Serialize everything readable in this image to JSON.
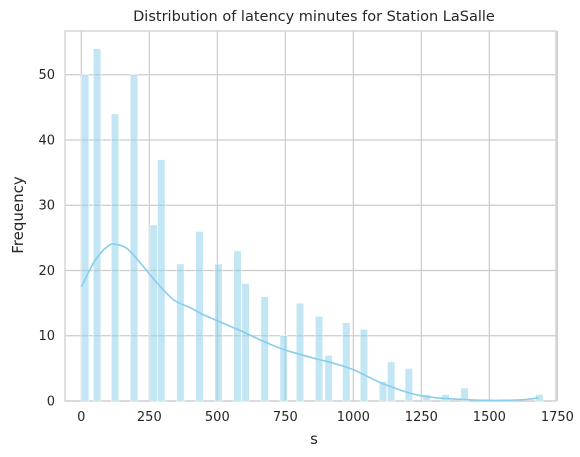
{
  "chart_data": {
    "type": "bar",
    "title": "Distribution of latency minutes for Station LaSalle",
    "xlabel": "s",
    "ylabel": "Frequency",
    "xlim": [
      -60,
      1745
    ],
    "ylim": [
      0,
      56.7
    ],
    "xticks": [
      0,
      250,
      500,
      750,
      1000,
      1250,
      1500,
      1750
    ],
    "yticks": [
      0,
      10,
      20,
      30,
      40,
      50
    ],
    "grid": true,
    "bin_width": 28,
    "bar_color": "#87ceeb",
    "bins": [
      {
        "x": 0,
        "count": 50
      },
      {
        "x": 44,
        "count": 54
      },
      {
        "x": 110,
        "count": 44
      },
      {
        "x": 180,
        "count": 50
      },
      {
        "x": 252,
        "count": 27
      },
      {
        "x": 280,
        "count": 37
      },
      {
        "x": 350,
        "count": 21
      },
      {
        "x": 420,
        "count": 26
      },
      {
        "x": 490,
        "count": 21
      },
      {
        "x": 560,
        "count": 23
      },
      {
        "x": 590,
        "count": 18
      },
      {
        "x": 660,
        "count": 16
      },
      {
        "x": 730,
        "count": 10
      },
      {
        "x": 790,
        "count": 15
      },
      {
        "x": 860,
        "count": 13
      },
      {
        "x": 895,
        "count": 7
      },
      {
        "x": 960,
        "count": 12
      },
      {
        "x": 1025,
        "count": 11
      },
      {
        "x": 1095,
        "count": 3
      },
      {
        "x": 1125,
        "count": 6
      },
      {
        "x": 1190,
        "count": 5
      },
      {
        "x": 1255,
        "count": 1
      },
      {
        "x": 1325,
        "count": 1
      },
      {
        "x": 1395,
        "count": 2
      },
      {
        "x": 1670,
        "count": 1
      }
    ],
    "kde": {
      "color": "#87ceeb",
      "x": [
        0,
        50,
        100,
        130,
        170,
        220,
        280,
        340,
        400,
        450,
        500,
        550,
        600,
        650,
        700,
        750,
        800,
        850,
        900,
        950,
        1000,
        1050,
        1100,
        1150,
        1200,
        1250,
        1300,
        1350,
        1400,
        1450,
        1500,
        1550,
        1600,
        1650,
        1680
      ],
      "y": [
        17.5,
        21.5,
        23.8,
        24.0,
        23.3,
        21.0,
        18.0,
        15.5,
        14.3,
        13.2,
        12.3,
        11.4,
        10.5,
        9.5,
        8.6,
        7.8,
        7.2,
        6.6,
        6.1,
        5.5,
        4.8,
        3.8,
        2.8,
        2.0,
        1.3,
        0.8,
        0.5,
        0.35,
        0.25,
        0.15,
        0.1,
        0.1,
        0.15,
        0.3,
        0.5
      ]
    }
  }
}
